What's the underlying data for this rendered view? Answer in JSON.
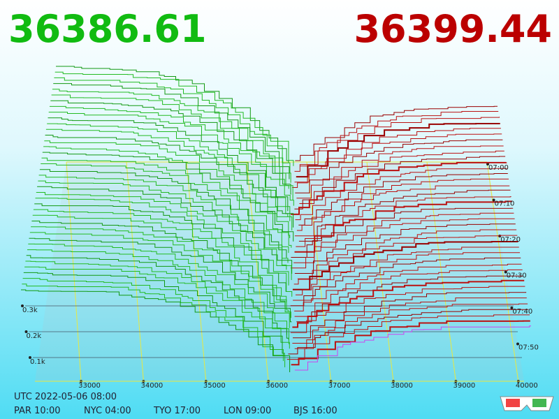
{
  "header": {
    "bid_price": "36386.61",
    "ask_price": "36399.44"
  },
  "price_axis": [
    "33000",
    "34000",
    "35000",
    "36000",
    "37000",
    "38000",
    "39000",
    "40000"
  ],
  "depth_axis": [
    "0.3k",
    "0.2k",
    "0.1k"
  ],
  "time_axis": [
    "07:00",
    "07:10",
    "07:20",
    "07:30",
    "07:40",
    "07:50"
  ],
  "footer": {
    "utc": "UTC 2022-05-06 08:00",
    "clocks": [
      "PAR 10:00",
      "NYC 04:00",
      "TYO 17:00",
      "LON 09:00",
      "BJS 16:00"
    ]
  }
}
